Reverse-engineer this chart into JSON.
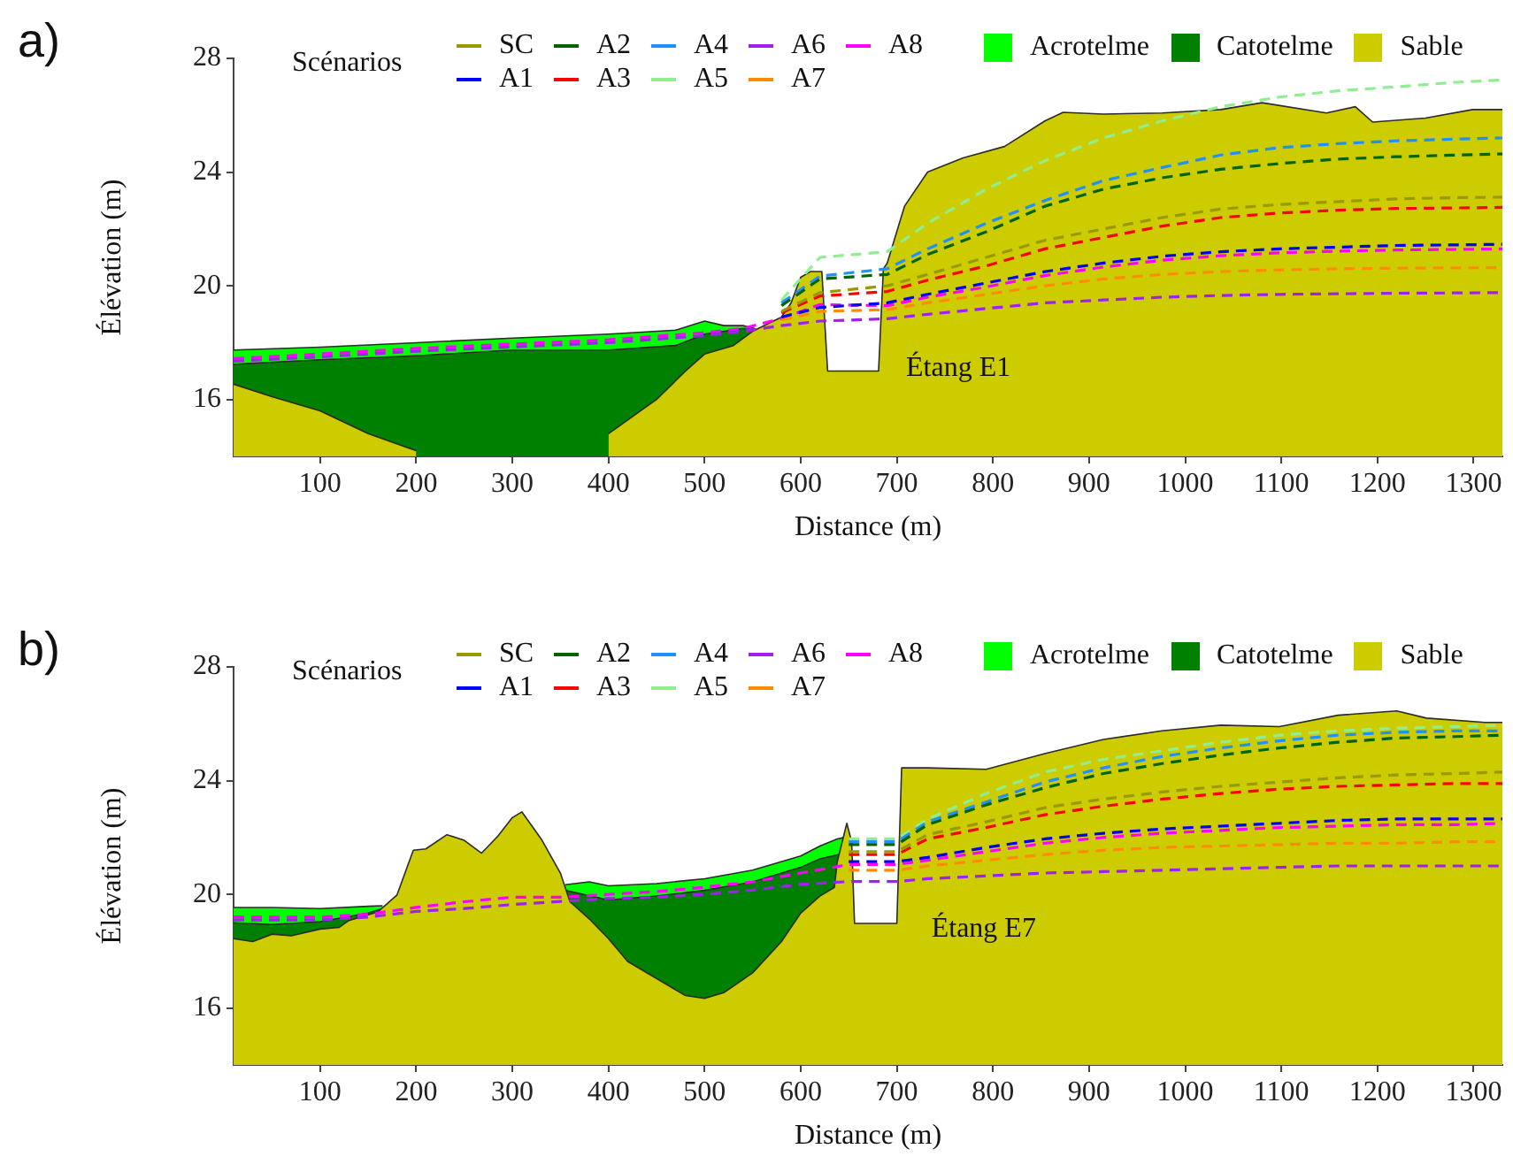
{
  "chart_data": [
    {
      "type": "line",
      "title": "a)",
      "xlabel": "Distance (m)",
      "ylabel": "Élévation (m)",
      "legend_title": "Scénarios",
      "legend": "top",
      "line_style": "dashed",
      "xlim": [
        10,
        1330
      ],
      "ylim": [
        14,
        28
      ],
      "xticks": [
        100,
        200,
        300,
        400,
        500,
        600,
        700,
        800,
        900,
        1000,
        1100,
        1200,
        1300
      ],
      "yticks": [
        16,
        20,
        24,
        28
      ],
      "annotations": [
        "Étang E1"
      ],
      "series": [
        {
          "name": "Acrotelme",
          "type": "area",
          "color": "#00ff00",
          "x": [
            10,
            100,
            200,
            300,
            400,
            470,
            500,
            520,
            540,
            552
          ],
          "values": [
            17.74,
            17.84,
            18.0,
            18.16,
            18.3,
            18.44,
            18.76,
            18.6,
            18.6,
            18.5
          ]
        },
        {
          "name": "Catotelme",
          "type": "area",
          "color": "#008000",
          "x": [
            10,
            100,
            200,
            300,
            400,
            470,
            500,
            540,
            552
          ],
          "values": [
            17.24,
            17.4,
            17.54,
            17.74,
            17.74,
            17.9,
            18.3,
            18.5,
            18.45
          ]
        },
        {
          "name": "Sable",
          "type": "area",
          "color": "#cccc00",
          "x": [
            10,
            50,
            100,
            150,
            200,
            220,
            350,
            400,
            450,
            480,
            500,
            530,
            550,
            580,
            590,
            600,
            610,
            622,
            628,
            681,
            686,
            690,
            708,
            732,
            769,
            812,
            854,
            873,
            915,
            976,
            1037,
            1080,
            1147,
            1177,
            1195,
            1250,
            1299,
            1330
          ],
          "values": [
            16.54,
            16.1,
            15.6,
            14.8,
            14.2,
            null,
            null,
            14.8,
            16.0,
            17.0,
            17.6,
            17.9,
            18.4,
            18.9,
            19.4,
            20.3,
            20.5,
            20.5,
            17.0,
            17.0,
            20.6,
            20.8,
            22.8,
            24.0,
            24.5,
            24.9,
            25.8,
            26.1,
            26.04,
            26.08,
            26.2,
            26.44,
            26.08,
            26.3,
            25.76,
            25.9,
            26.2,
            26.2
          ]
        },
        {
          "name": "SC",
          "color": "#999900",
          "x": [
            580,
            620,
            690,
            732,
            793,
            854,
            915,
            976,
            1037,
            1098,
            1159,
            1220,
            1281,
            1330
          ],
          "values": [
            19.1,
            19.76,
            20.0,
            20.4,
            21.0,
            21.6,
            22.0,
            22.4,
            22.7,
            22.86,
            22.96,
            23.06,
            23.1,
            23.12
          ]
        },
        {
          "name": "A1",
          "color": "#0000ff",
          "x": [
            580,
            620,
            690,
            732,
            793,
            854,
            915,
            976,
            1037,
            1098,
            1159,
            1220,
            1281,
            1330
          ],
          "values": [
            18.9,
            19.24,
            19.4,
            19.7,
            20.1,
            20.5,
            20.8,
            21.04,
            21.2,
            21.3,
            21.36,
            21.42,
            21.44,
            21.46
          ]
        },
        {
          "name": "A2",
          "color": "#006400",
          "x": [
            580,
            620,
            690,
            732,
            793,
            854,
            915,
            976,
            1037,
            1098,
            1159,
            1220,
            1281,
            1330
          ],
          "values": [
            19.3,
            20.24,
            20.4,
            21.1,
            21.9,
            22.8,
            23.4,
            23.8,
            24.1,
            24.3,
            24.46,
            24.54,
            24.6,
            24.64
          ]
        },
        {
          "name": "A3",
          "color": "#ff0000",
          "x": [
            580,
            620,
            690,
            732,
            793,
            854,
            915,
            976,
            1037,
            1098,
            1159,
            1220,
            1281,
            1330
          ],
          "values": [
            19.05,
            19.64,
            19.8,
            20.2,
            20.7,
            21.3,
            21.7,
            22.1,
            22.4,
            22.56,
            22.66,
            22.72,
            22.74,
            22.76
          ]
        },
        {
          "name": "A4",
          "color": "#1e90ff",
          "x": [
            580,
            620,
            690,
            732,
            793,
            854,
            915,
            976,
            1037,
            1098,
            1159,
            1220,
            1281,
            1330
          ],
          "values": [
            19.4,
            20.34,
            20.6,
            21.3,
            22.2,
            23.0,
            23.7,
            24.16,
            24.6,
            24.86,
            25.0,
            25.1,
            25.16,
            25.2
          ]
        },
        {
          "name": "A5",
          "color": "#90ee90",
          "x": [
            580,
            620,
            690,
            732,
            793,
            854,
            915,
            976,
            1037,
            1098,
            1159,
            1220,
            1281,
            1330
          ],
          "values": [
            19.5,
            21.0,
            21.2,
            22.2,
            23.4,
            24.4,
            25.2,
            25.8,
            26.3,
            26.64,
            26.86,
            27.0,
            27.16,
            27.24
          ]
        },
        {
          "name": "A6",
          "color": "#a020f0",
          "x": [
            10,
            100,
            200,
            300,
            400,
            500,
            540,
            580,
            620,
            690,
            732,
            793,
            854,
            915,
            976,
            1037,
            1098,
            1159,
            1220,
            1281,
            1330
          ],
          "values": [
            17.35,
            17.5,
            17.7,
            17.85,
            18.0,
            18.25,
            18.4,
            18.6,
            18.76,
            18.84,
            19.0,
            19.2,
            19.4,
            19.5,
            19.6,
            19.66,
            19.7,
            19.72,
            19.74,
            19.75,
            19.76
          ]
        },
        {
          "name": "A7",
          "color": "#ff8c00",
          "x": [
            580,
            620,
            690,
            732,
            793,
            854,
            915,
            976,
            1037,
            1098,
            1159,
            1220,
            1281,
            1330
          ],
          "values": [
            18.8,
            19.1,
            19.16,
            19.4,
            19.7,
            20.0,
            20.24,
            20.4,
            20.5,
            20.56,
            20.6,
            20.62,
            20.63,
            20.64
          ]
        },
        {
          "name": "A8",
          "color": "#ff00ff",
          "x": [
            10,
            100,
            200,
            300,
            400,
            500,
            540,
            580,
            620,
            690,
            732,
            793,
            854,
            915,
            976,
            1037,
            1098,
            1159,
            1220,
            1281,
            1330
          ],
          "values": [
            17.44,
            17.6,
            17.8,
            17.95,
            18.1,
            18.35,
            18.5,
            18.85,
            19.34,
            19.3,
            19.6,
            19.96,
            20.36,
            20.66,
            20.9,
            21.06,
            21.16,
            21.22,
            21.26,
            21.28,
            21.3
          ]
        }
      ]
    },
    {
      "type": "line",
      "title": "b)",
      "xlabel": "Distance (m)",
      "ylabel": "Élévation (m)",
      "legend_title": "Scénarios",
      "legend": "top",
      "line_style": "dashed",
      "xlim": [
        10,
        1330
      ],
      "ylim": [
        14,
        28
      ],
      "xticks": [
        100,
        200,
        300,
        400,
        500,
        600,
        700,
        800,
        900,
        1000,
        1100,
        1200,
        1300
      ],
      "yticks": [
        16,
        20,
        24,
        28
      ],
      "annotations": [
        "Étang E7"
      ],
      "series": [
        {
          "name": "Acrotelme",
          "type": "area",
          "color": "#00ff00",
          "x": [
            10,
            50,
            100,
            150,
            165,
            260,
            355,
            380,
            400,
            450,
            500,
            550,
            600,
            620,
            638,
            645
          ],
          "values": [
            19.54,
            19.54,
            19.5,
            19.58,
            19.6,
            null,
            20.34,
            20.44,
            20.3,
            20.38,
            20.55,
            20.85,
            21.35,
            21.7,
            21.95,
            22.0
          ]
        },
        {
          "name": "Catotelme",
          "type": "area",
          "color": "#008000",
          "x": [
            10,
            50,
            100,
            150,
            165,
            260,
            355,
            400,
            450,
            500,
            550,
            600,
            620,
            640
          ],
          "values": [
            19.0,
            18.94,
            19.04,
            19.34,
            19.5,
            null,
            20.14,
            19.8,
            19.94,
            20.14,
            20.44,
            20.95,
            21.25,
            21.4
          ]
        },
        {
          "name": "Sable",
          "type": "area",
          "color": "#cccc00",
          "x": [
            10,
            30,
            50,
            70,
            100,
            120,
            130,
            160,
            180,
            197,
            210,
            232,
            250,
            268,
            285,
            300,
            310,
            330,
            350,
            360,
            380,
            400,
            420,
            450,
            480,
            500,
            520,
            550,
            580,
            600,
            620,
            635,
            638,
            648,
            653,
            656,
            700,
            705,
            732,
            793,
            854,
            915,
            976,
            1037,
            1098,
            1159,
            1220,
            1251,
            1312,
            1330
          ],
          "values": [
            18.44,
            18.34,
            18.6,
            18.54,
            18.78,
            18.84,
            19.08,
            19.38,
            19.98,
            21.55,
            21.6,
            22.1,
            21.9,
            21.45,
            22.05,
            22.7,
            22.9,
            21.95,
            20.75,
            19.74,
            19.14,
            18.44,
            17.64,
            17.04,
            16.44,
            16.34,
            16.54,
            17.24,
            18.34,
            19.34,
            19.94,
            20.24,
            21.14,
            22.5,
            21.85,
            18.98,
            18.98,
            24.45,
            24.45,
            24.4,
            24.95,
            25.45,
            25.75,
            25.95,
            25.9,
            26.3,
            26.45,
            26.2,
            26.05,
            26.05
          ]
        },
        {
          "name": "SC",
          "color": "#999900",
          "x": [
            650,
            700,
            732,
            793,
            854,
            915,
            976,
            1037,
            1098,
            1159,
            1220,
            1281,
            1330
          ],
          "values": [
            21.5,
            21.5,
            22.1,
            22.55,
            23.05,
            23.35,
            23.6,
            23.8,
            23.95,
            24.1,
            24.2,
            24.25,
            24.3
          ]
        },
        {
          "name": "A1",
          "color": "#0000ff",
          "x": [
            650,
            700,
            732,
            793,
            854,
            915,
            976,
            1037,
            1098,
            1159,
            1220,
            1281,
            1330
          ],
          "values": [
            21.15,
            21.15,
            21.3,
            21.65,
            21.95,
            22.15,
            22.3,
            22.4,
            22.5,
            22.6,
            22.65,
            22.65,
            22.65
          ]
        },
        {
          "name": "A2",
          "color": "#006400",
          "x": [
            650,
            700,
            732,
            793,
            854,
            915,
            976,
            1037,
            1098,
            1159,
            1220,
            1281,
            1330
          ],
          "values": [
            21.75,
            21.75,
            22.45,
            23.15,
            23.75,
            24.25,
            24.6,
            24.9,
            25.15,
            25.35,
            25.5,
            25.55,
            25.6
          ]
        },
        {
          "name": "A3",
          "color": "#ff0000",
          "x": [
            650,
            700,
            732,
            793,
            854,
            915,
            976,
            1037,
            1098,
            1159,
            1220,
            1281,
            1330
          ],
          "values": [
            21.4,
            21.4,
            21.95,
            22.35,
            22.8,
            23.1,
            23.35,
            23.55,
            23.7,
            23.8,
            23.85,
            23.9,
            23.9
          ]
        },
        {
          "name": "A4",
          "color": "#1e90ff",
          "x": [
            650,
            700,
            732,
            793,
            854,
            915,
            976,
            1037,
            1098,
            1159,
            1220,
            1281,
            1330
          ],
          "values": [
            21.85,
            21.85,
            22.55,
            23.25,
            23.95,
            24.45,
            24.85,
            25.15,
            25.4,
            25.6,
            25.7,
            25.75,
            25.75
          ]
        },
        {
          "name": "A5",
          "color": "#90ee90",
          "x": [
            650,
            700,
            732,
            793,
            854,
            915,
            976,
            1037,
            1098,
            1159,
            1220,
            1281,
            1330
          ],
          "values": [
            21.95,
            21.95,
            22.65,
            23.55,
            24.3,
            24.75,
            25.05,
            25.35,
            25.6,
            25.75,
            25.85,
            25.9,
            25.95
          ]
        },
        {
          "name": "A6",
          "color": "#a020f0",
          "x": [
            10,
            100,
            150,
            200,
            250,
            300,
            350,
            400,
            450,
            500,
            550,
            600,
            650,
            700,
            732,
            793,
            854,
            915,
            976,
            1037,
            1098,
            1159,
            1220,
            1281,
            1330
          ],
          "values": [
            19.1,
            19.1,
            19.2,
            19.4,
            19.5,
            19.64,
            19.75,
            19.85,
            19.9,
            20.0,
            20.15,
            20.35,
            20.45,
            20.45,
            20.55,
            20.65,
            20.75,
            20.8,
            20.85,
            20.9,
            20.95,
            21.0,
            21.0,
            21.0,
            21.0
          ]
        },
        {
          "name": "A7",
          "color": "#ff8c00",
          "x": [
            650,
            700,
            732,
            793,
            854,
            915,
            976,
            1037,
            1098,
            1159,
            1220,
            1281,
            1330
          ],
          "values": [
            20.85,
            20.85,
            21.0,
            21.2,
            21.4,
            21.55,
            21.65,
            21.7,
            21.75,
            21.8,
            21.8,
            21.85,
            21.85
          ]
        },
        {
          "name": "A8",
          "color": "#ff00ff",
          "x": [
            10,
            100,
            150,
            200,
            250,
            300,
            350,
            400,
            450,
            500,
            550,
            600,
            650,
            700,
            732,
            793,
            854,
            915,
            976,
            1037,
            1098,
            1159,
            1220,
            1281,
            1330
          ],
          "values": [
            19.2,
            19.2,
            19.3,
            19.54,
            19.74,
            19.9,
            19.9,
            20.0,
            20.1,
            20.25,
            20.44,
            20.75,
            21.05,
            21.05,
            21.2,
            21.5,
            21.8,
            22.0,
            22.15,
            22.25,
            22.35,
            22.4,
            22.45,
            22.45,
            22.5
          ]
        }
      ]
    }
  ]
}
